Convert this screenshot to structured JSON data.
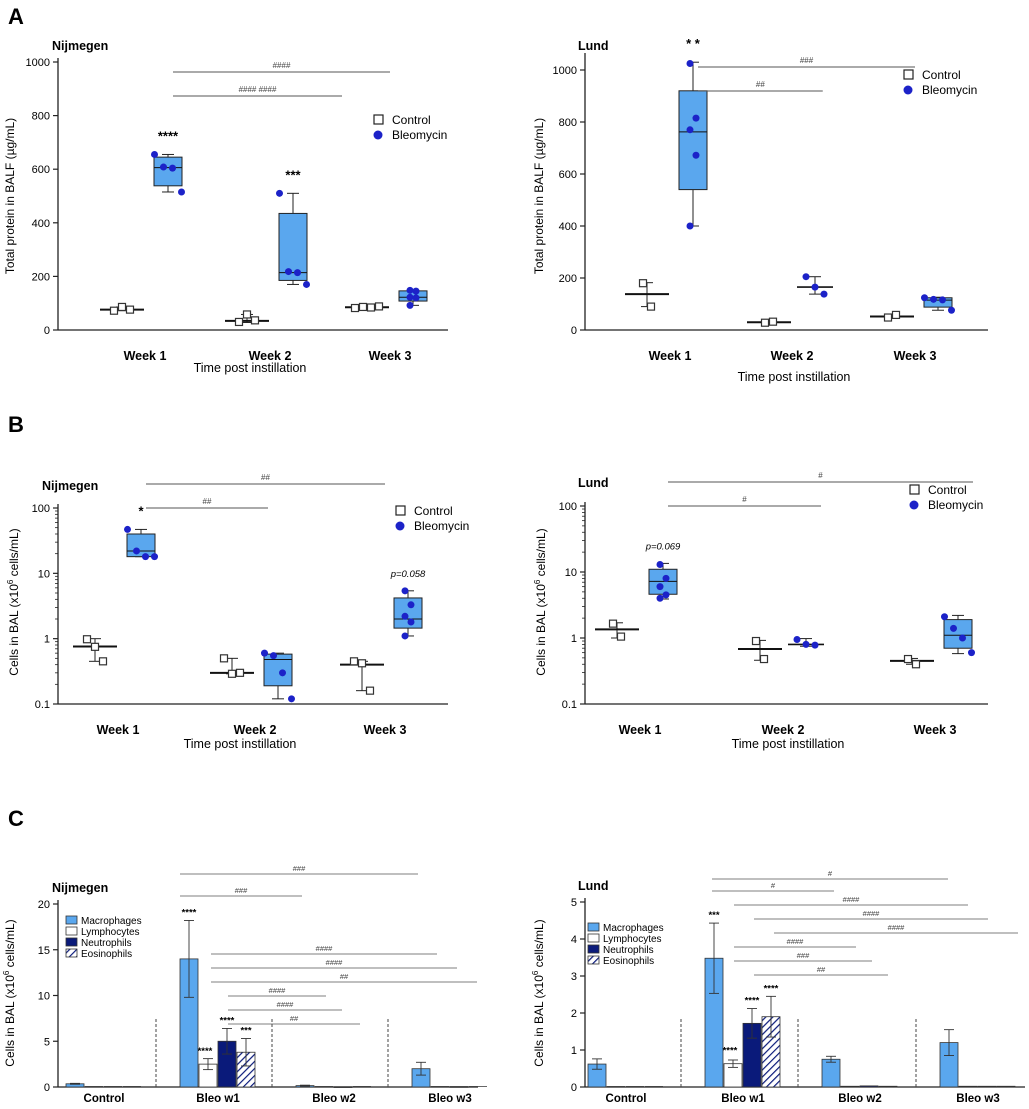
{
  "figure": {
    "panel_labels": [
      "A",
      "B",
      "C"
    ],
    "colors": {
      "blue_box": "#5aa7ee",
      "blue_dot": "#1c22c8",
      "navy": "#0a1a7a",
      "stroke": "#222222",
      "sig_line": "#555555"
    }
  },
  "chart_data": [
    {
      "id": "A-Nijmegen",
      "type": "box",
      "title": "Nijmegen",
      "xlabel": "Time post instillation",
      "ylabel": "Total protein in BALF (µg/mL)",
      "yscale": "linear",
      "ylim": [
        0,
        1000
      ],
      "yticks": [
        0,
        200,
        400,
        600,
        800,
        1000
      ],
      "categories": [
        "Week 1",
        "Week 2",
        "Week 3"
      ],
      "legend": [
        "Control",
        "Bleomycin"
      ],
      "control": [
        {
          "points": [
            72,
            86,
            76
          ],
          "median": 76,
          "min": 72,
          "max": 86
        },
        {
          "points": [
            30,
            58,
            36
          ],
          "median": 34,
          "min": 28,
          "max": 58
        },
        {
          "points": [
            82,
            86,
            84,
            88
          ],
          "median": 85,
          "min": 82,
          "max": 88
        }
      ],
      "bleomycin": [
        {
          "points": [
            655,
            608,
            604,
            515
          ],
          "q1": 538,
          "median": 606,
          "q3": 645,
          "min": 515,
          "max": 655
        },
        {
          "points": [
            510,
            218,
            214,
            170
          ],
          "q1": 185,
          "median": 214,
          "q3": 435,
          "min": 170,
          "max": 510
        },
        {
          "points": [
            148,
            145,
            122,
            120,
            92
          ],
          "q1": 108,
          "median": 122,
          "q3": 146,
          "min": 92,
          "max": 148
        }
      ],
      "annotations": [
        {
          "cat": 0,
          "text": "****"
        },
        {
          "cat": 1,
          "text": "***"
        }
      ],
      "sig_bars": [
        {
          "from": 0,
          "to": 2,
          "level": 2,
          "text": "####"
        },
        {
          "from": 0,
          "to": 1.6,
          "level": 1,
          "text": "####        ####"
        }
      ]
    },
    {
      "id": "A-Lund",
      "type": "box",
      "title": "Lund",
      "xlabel": "Time post instillation",
      "ylabel": "Total protein in BALF (µg/mL)",
      "yscale": "linear",
      "ylim": [
        0,
        1050
      ],
      "yticks": [
        0,
        200,
        400,
        600,
        800,
        1000
      ],
      "categories": [
        "Week 1",
        "Week 2",
        "Week 3"
      ],
      "legend": [
        "Control",
        "Bleomycin"
      ],
      "control": [
        {
          "points": [
            180,
            90
          ],
          "median": 138,
          "min": 90,
          "max": 182
        },
        {
          "points": [
            28,
            32
          ],
          "median": 30,
          "min": 26,
          "max": 32
        },
        {
          "points": [
            48,
            58
          ],
          "median": 52,
          "min": 46,
          "max": 58
        }
      ],
      "bleomycin": [
        {
          "points": [
            1025,
            815,
            770,
            672,
            400
          ],
          "q1": 540,
          "median": 762,
          "q3": 920,
          "min": 400,
          "max": 1030
        },
        {
          "points": [
            205,
            165,
            138
          ],
          "median": 165,
          "min": 138,
          "max": 205
        },
        {
          "points": [
            124,
            118,
            116,
            76
          ],
          "q1": 88,
          "median": 115,
          "q3": 124,
          "min": 76,
          "max": 126
        }
      ],
      "annotations": [
        {
          "cat": 0,
          "text": "* *"
        }
      ],
      "sig_bars": [
        {
          "from": 0,
          "to": 2,
          "level": 2,
          "text": "###"
        },
        {
          "from": 0,
          "to": 1.25,
          "level": 1,
          "text": "##"
        }
      ]
    },
    {
      "id": "B-Nijmegen",
      "type": "box",
      "title": "Nijmegen",
      "xlabel": "Time post instillation",
      "ylabel_main": "Cells in BAL (x10",
      "ylabel_sup": "6",
      "ylabel_end": " cells/mL)",
      "yscale": "log",
      "ylim": [
        0.1,
        100
      ],
      "yticks": [
        0.1,
        1,
        10,
        100
      ],
      "ytick_labels": [
        "0.1",
        "1",
        "10",
        "100"
      ],
      "categories": [
        "Week 1",
        "Week 2",
        "Week 3"
      ],
      "legend": [
        "Control",
        "Bleomycin"
      ],
      "control": [
        {
          "points": [
            0.98,
            0.75,
            0.45
          ],
          "median": 0.76,
          "min": 0.45,
          "max": 1.0
        },
        {
          "points": [
            0.5,
            0.29,
            0.3
          ],
          "median": 0.3,
          "min": 0.29,
          "max": 0.5
        },
        {
          "points": [
            0.45,
            0.42,
            0.16
          ],
          "median": 0.4,
          "min": 0.16,
          "max": 0.45
        }
      ],
      "bleomycin": [
        {
          "points": [
            47,
            22,
            18,
            18
          ],
          "q1": 18,
          "median": 22,
          "q3": 40,
          "min": 18,
          "max": 47
        },
        {
          "points": [
            0.6,
            0.55,
            0.3,
            0.12
          ],
          "q1": 0.19,
          "median": 0.48,
          "q3": 0.58,
          "min": 0.12,
          "max": 0.6
        },
        {
          "points": [
            5.4,
            3.3,
            2.2,
            1.8,
            1.1
          ],
          "q1": 1.45,
          "median": 2.0,
          "q3": 4.2,
          "min": 1.1,
          "max": 5.4
        }
      ],
      "annotations": [
        {
          "cat": 0,
          "text": "*"
        },
        {
          "cat": 2,
          "text": "p=0.058"
        }
      ],
      "sig_bars": [
        {
          "from": 0,
          "to": 2,
          "level": 2,
          "text": "##"
        },
        {
          "from": 0,
          "to": 1.1,
          "level": 1,
          "text": "##"
        }
      ]
    },
    {
      "id": "B-Lund",
      "type": "box",
      "title": "Lund",
      "xlabel": "Time post instillation",
      "ylabel_main": "Cells in BAL (x10",
      "ylabel_sup": "6",
      "ylabel_end": " cells/mL)",
      "yscale": "log",
      "ylim": [
        0.1,
        100
      ],
      "yticks": [
        0.1,
        1,
        10,
        100
      ],
      "ytick_labels": [
        "0.1",
        "1",
        "10",
        "100"
      ],
      "categories": [
        "Week 1",
        "Week 2",
        "Week 3"
      ],
      "legend": [
        "Control",
        "Bleomycin"
      ],
      "control": [
        {
          "points": [
            1.65,
            1.05
          ],
          "median": 1.35,
          "min": 1.0,
          "max": 1.7
        },
        {
          "points": [
            0.9,
            0.48
          ],
          "median": 0.68,
          "min": 0.46,
          "max": 0.92
        },
        {
          "points": [
            0.48,
            0.4
          ],
          "median": 0.45,
          "min": 0.4,
          "max": 0.49
        }
      ],
      "bleomycin": [
        {
          "points": [
            13,
            8,
            6,
            4.5,
            4
          ],
          "q1": 4.6,
          "median": 7.2,
          "q3": 11,
          "min": 3.9,
          "max": 13.5
        },
        {
          "points": [
            0.95,
            0.8,
            0.78
          ],
          "median": 0.8,
          "min": 0.75,
          "max": 0.98
        },
        {
          "points": [
            2.1,
            1.4,
            1.0,
            0.6
          ],
          "q1": 0.7,
          "median": 1.1,
          "q3": 1.9,
          "min": 0.58,
          "max": 2.2
        }
      ],
      "annotations": [
        {
          "cat": 0,
          "text": "p=0.069"
        }
      ],
      "sig_bars": [
        {
          "from": 0,
          "to": 2.25,
          "level": 2,
          "text": "#"
        },
        {
          "from": 0,
          "to": 1.25,
          "level": 1,
          "text": "#"
        }
      ]
    },
    {
      "id": "C-Nijmegen",
      "type": "bar",
      "title": "Nijmegen",
      "ylabel_main": "Cells in BAL (x10",
      "ylabel_sup": "6",
      "ylabel_end": " cells/mL)",
      "ylim": [
        0,
        20
      ],
      "yticks": [
        0,
        5,
        10,
        15,
        20
      ],
      "categories": [
        "Control",
        "Bleo w1",
        "Bleo w2",
        "Bleo w3"
      ],
      "series": [
        {
          "name": "Macrophages",
          "values": [
            0.35,
            14,
            0.15,
            2.0
          ],
          "errors": [
            0.05,
            4.2,
            0.05,
            0.7
          ]
        },
        {
          "name": "Lymphocytes",
          "values": [
            0,
            2.5,
            0,
            0
          ],
          "errors": [
            0,
            0.6,
            0,
            0
          ]
        },
        {
          "name": "Neutrophils",
          "values": [
            0,
            5.0,
            0.03,
            0.05
          ],
          "errors": [
            0,
            1.4,
            0,
            0
          ]
        },
        {
          "name": "Eosinophils",
          "values": [
            0,
            3.8,
            0,
            0
          ],
          "errors": [
            0,
            1.5,
            0,
            0
          ]
        }
      ],
      "annotations": [
        {
          "cat": 1,
          "series": 0,
          "text": "****"
        },
        {
          "cat": 1,
          "series": 1,
          "text": "****"
        },
        {
          "cat": 1,
          "series": 2,
          "text": "****"
        },
        {
          "cat": 1,
          "series": 3,
          "text": "***"
        }
      ],
      "sig_lines": [
        {
          "text": "###"
        },
        {
          "text": "###"
        },
        {
          "text": "####"
        },
        {
          "text": "####"
        },
        {
          "text": "##"
        },
        {
          "text": "####"
        },
        {
          "text": "####"
        },
        {
          "text": "##"
        }
      ]
    },
    {
      "id": "C-Lund",
      "type": "bar",
      "title": "Lund",
      "ylabel_main": "Cells in BAL (x10",
      "ylabel_sup": "6",
      "ylabel_end": " cells/mL)",
      "ylim": [
        0,
        5
      ],
      "yticks": [
        0,
        1,
        2,
        3,
        4,
        5
      ],
      "categories": [
        "Control",
        "Bleo w1",
        "Bleo w2",
        "Bleo w3"
      ],
      "series": [
        {
          "name": "Macrophages",
          "values": [
            0.62,
            3.48,
            0.75,
            1.2
          ],
          "errors": [
            0.14,
            0.95,
            0.08,
            0.35
          ]
        },
        {
          "name": "Lymphocytes",
          "values": [
            0,
            0.63,
            0.02,
            0.02
          ],
          "errors": [
            0,
            0.1,
            0,
            0
          ]
        },
        {
          "name": "Neutrophils",
          "values": [
            0,
            1.72,
            0.03,
            0.02
          ],
          "errors": [
            0,
            0.4,
            0,
            0
          ]
        },
        {
          "name": "Eosinophils",
          "values": [
            0,
            1.9,
            0.02,
            0.02
          ],
          "errors": [
            0,
            0.55,
            0,
            0
          ]
        }
      ],
      "annotations": [
        {
          "cat": 1,
          "series": 0,
          "text": "***"
        },
        {
          "cat": 1,
          "series": 1,
          "text": "****"
        },
        {
          "cat": 1,
          "series": 2,
          "text": "****"
        },
        {
          "cat": 1,
          "series": 3,
          "text": "****"
        }
      ],
      "sig_lines": [
        {
          "text": "#"
        },
        {
          "text": "#"
        },
        {
          "text": "####"
        },
        {
          "text": "####"
        },
        {
          "text": "####"
        },
        {
          "text": "####"
        },
        {
          "text": "###"
        },
        {
          "text": "##"
        }
      ]
    }
  ]
}
